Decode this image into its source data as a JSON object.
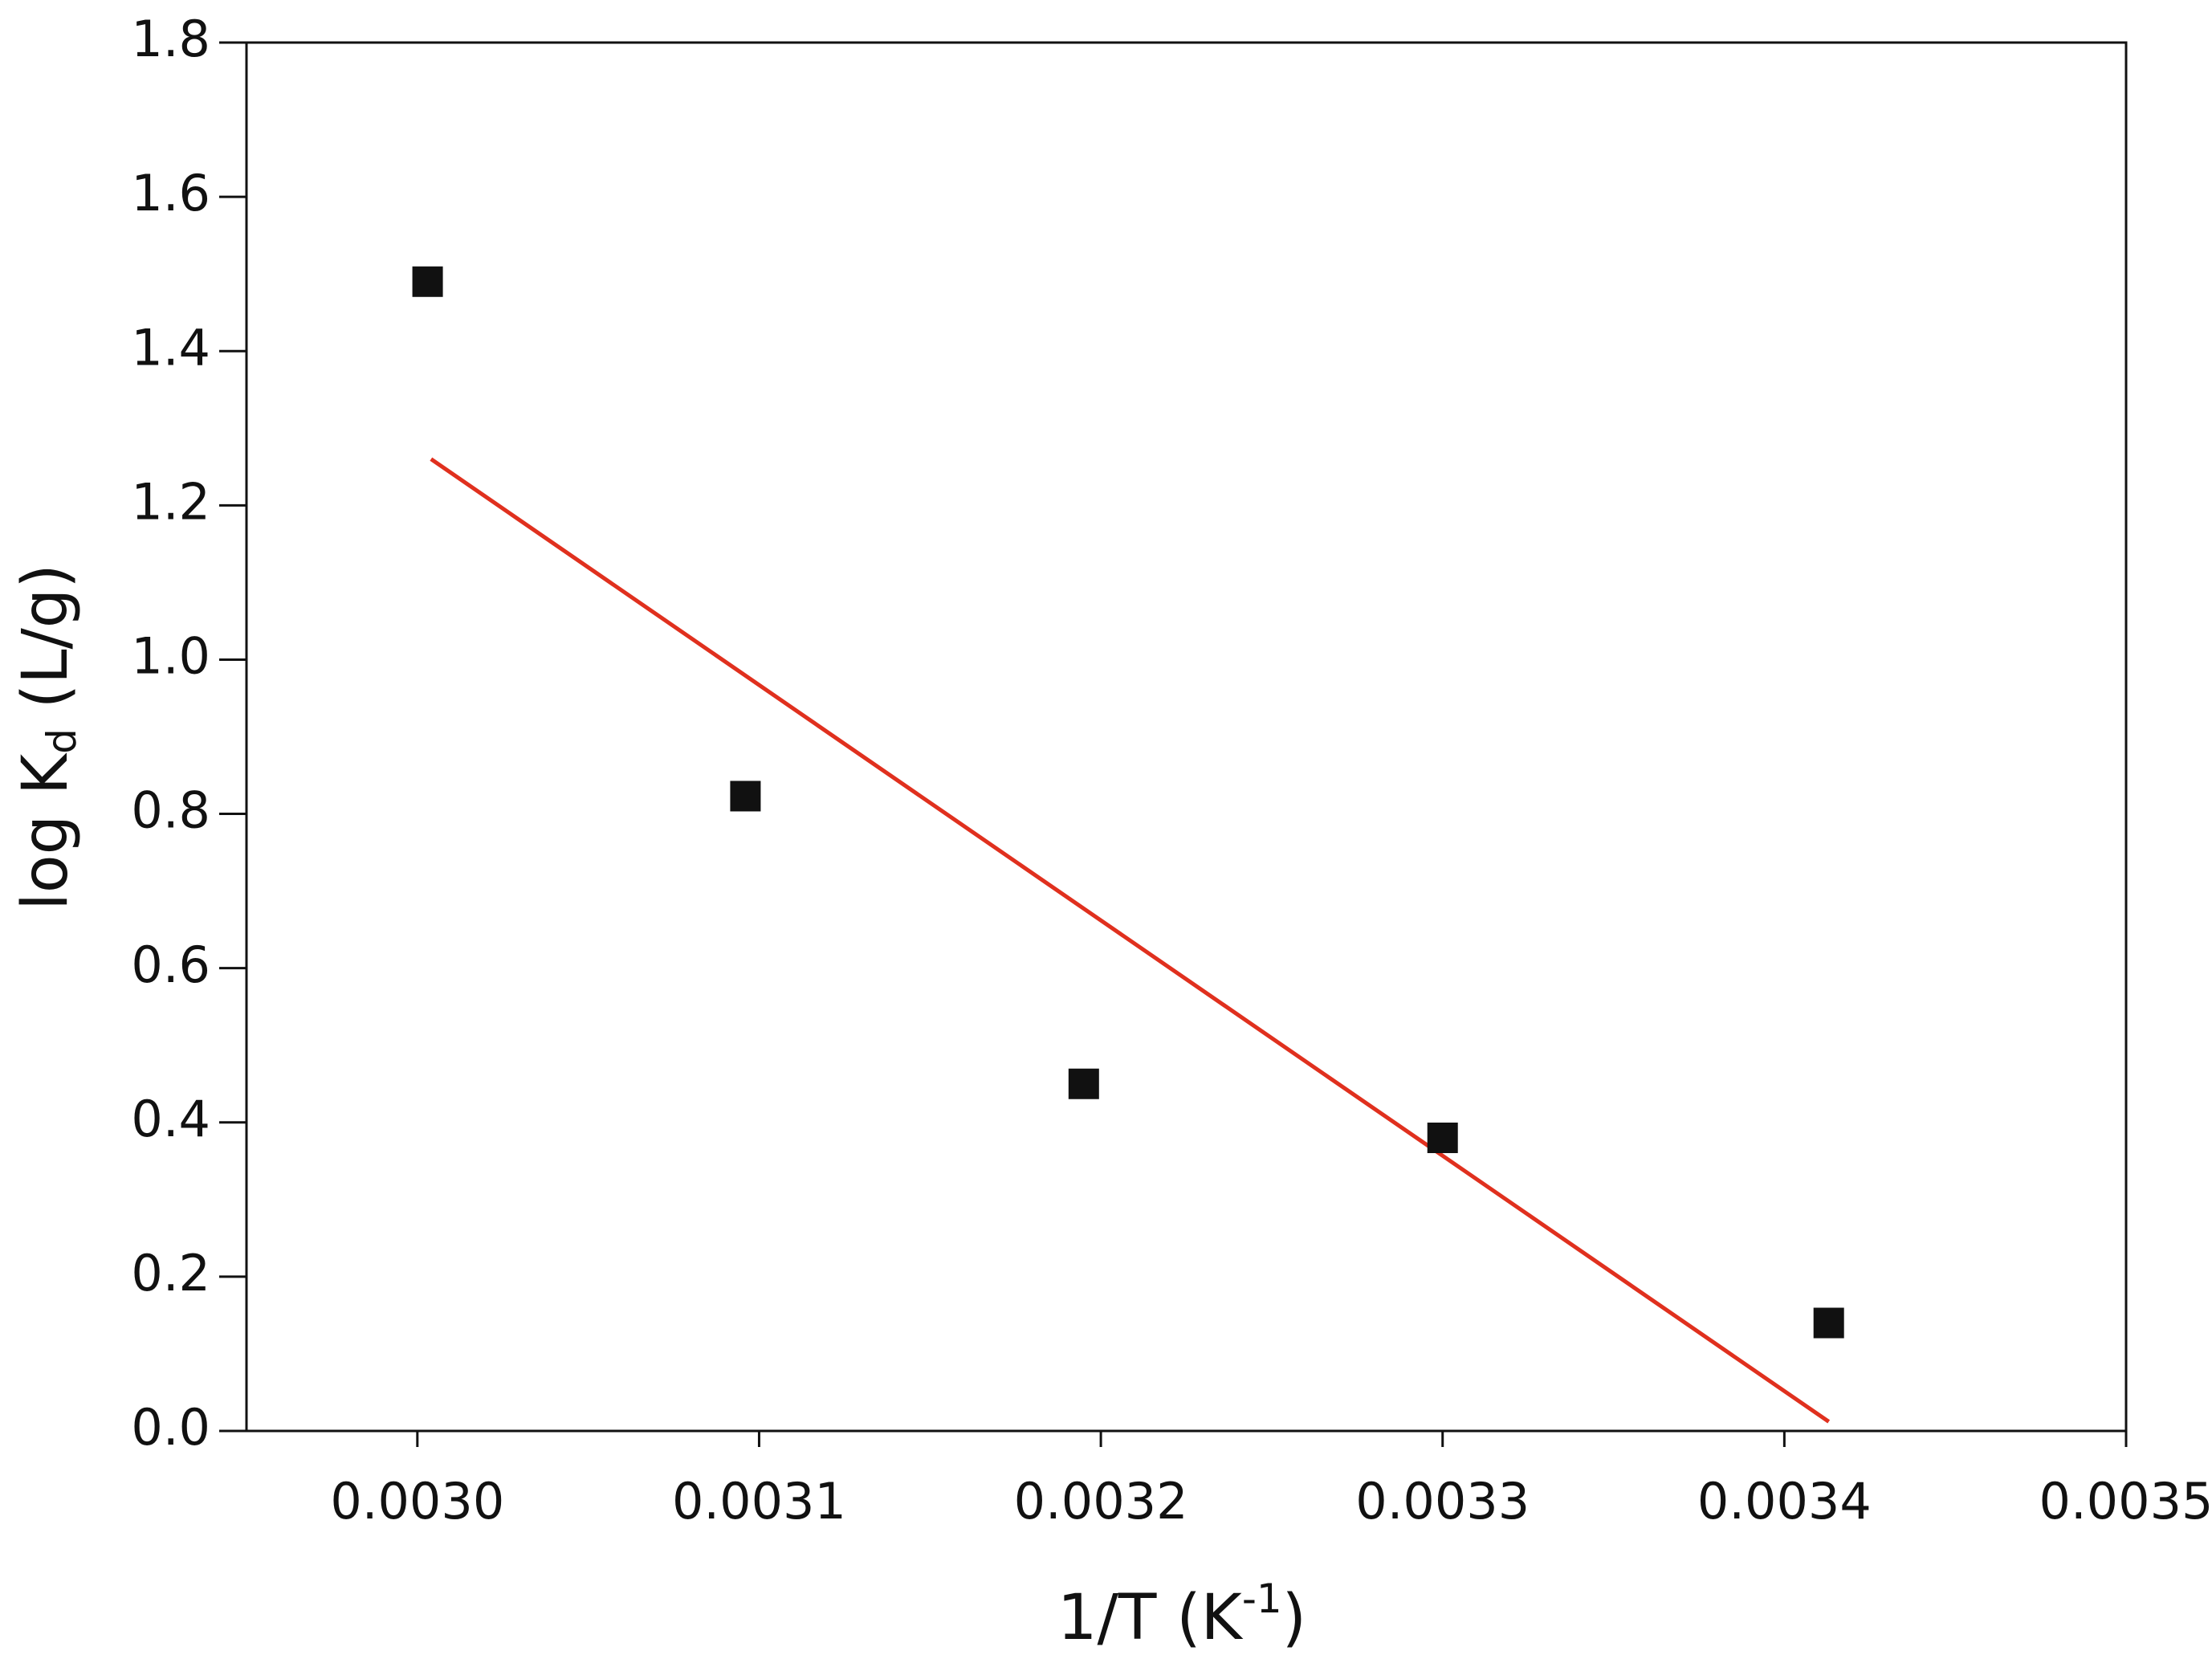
{
  "chart_data": {
    "type": "scatter",
    "xlabel": [
      "1/T (K",
      "-1",
      ")"
    ],
    "ylabel": [
      "log K",
      "d",
      " (L/g)"
    ],
    "x": [
      0.003003,
      0.003096,
      0.003195,
      0.0033,
      0.003413
    ],
    "series": [
      {
        "color": "#111111",
        "values": [
          1.49,
          0.823,
          0.45,
          0.38,
          0.14
        ]
      }
    ],
    "fit_line": {
      "color": "#e0301e",
      "x": [
        0.003004,
        0.003413
      ],
      "values": [
        1.26,
        0.012
      ]
    },
    "xlim": [
      0.00295,
      0.0035
    ],
    "ylim": [
      0,
      1.8
    ],
    "xticks": [
      {
        "value": 0.003,
        "label": "0.0030"
      },
      {
        "value": 0.0031,
        "label": "0.0031"
      },
      {
        "value": 0.0032,
        "label": "0.0032"
      },
      {
        "value": 0.0033,
        "label": "0.0033"
      },
      {
        "value": 0.0034,
        "label": "0.0034"
      },
      {
        "value": 0.0035,
        "label": "0.0035"
      }
    ],
    "yticks": [
      {
        "value": 0,
        "label": "0.0"
      },
      0.2,
      0.4,
      0.6,
      0.8,
      {
        "value": 1,
        "label": "1.0"
      },
      1.2,
      1.4,
      1.6,
      1.8
    ]
  }
}
